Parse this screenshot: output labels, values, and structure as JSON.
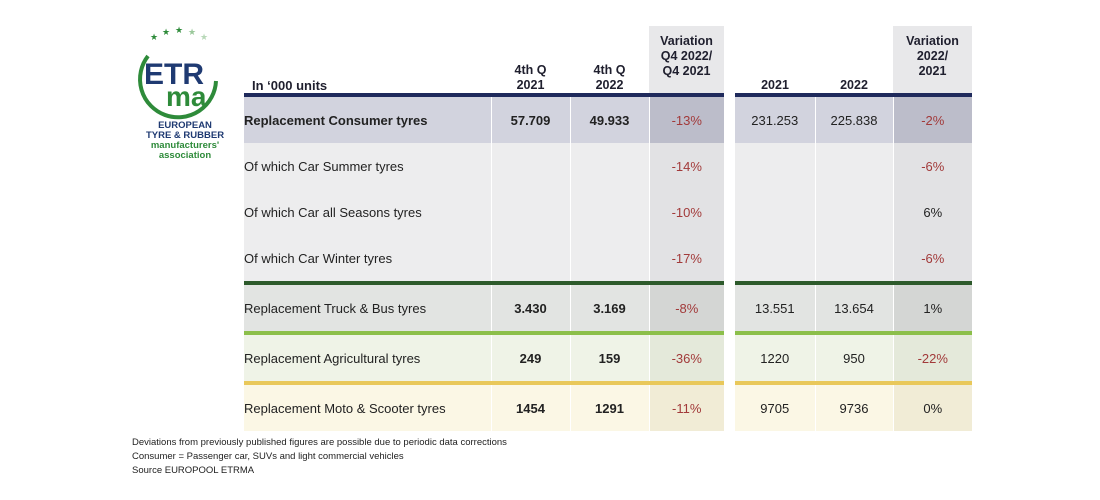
{
  "logo": {
    "acronym_top": "ETR",
    "acronym_bottom": "ma",
    "line1": "EUROPEAN",
    "line2": "TYRE & RUBBER",
    "line3": "manufacturers'",
    "line4": "association"
  },
  "table": {
    "headers": {
      "unit": "In ‘000 units",
      "q4_2021_l1": "4th Q",
      "q4_2021_l2": "2021",
      "q4_2022_l1": "4th Q",
      "q4_2022_l2": "2022",
      "var_q_l1": "Variation",
      "var_q_l2": "Q4 2022/",
      "var_q_l3": "Q4 2021",
      "y2021": "2021",
      "y2022": "2022",
      "var_y_l1": "Variation",
      "var_y_l2": "2022/",
      "var_y_l3": "2021"
    },
    "rows": [
      {
        "label": "Replacement Consumer tyres",
        "q21": "57.709",
        "q22": "49.933",
        "varq": "-13%",
        "y21": "231.253",
        "y22": "225.838",
        "vary": "-2%"
      },
      {
        "label": "Of which Car Summer tyres",
        "q21": "",
        "q22": "",
        "varq": "-14%",
        "y21": "",
        "y22": "",
        "vary": "-6%"
      },
      {
        "label": "Of which Car all Seasons tyres",
        "q21": "",
        "q22": "",
        "varq": "-10%",
        "y21": "",
        "y22": "",
        "vary": "6%"
      },
      {
        "label": "Of which Car Winter tyres",
        "q21": "",
        "q22": "",
        "varq": "-17%",
        "y21": "",
        "y22": "",
        "vary": "-6%"
      },
      {
        "label": "Replacement Truck & Bus tyres",
        "q21": "3.430",
        "q22": "3.169",
        "varq": "-8%",
        "y21": "13.551",
        "y22": "13.654",
        "vary": "1%"
      },
      {
        "label": "Replacement Agricultural tyres",
        "q21": "249",
        "q22": "159",
        "varq": "-36%",
        "y21": "1220",
        "y22": "950",
        "vary": "-22%"
      },
      {
        "label": "Replacement Moto & Scooter tyres",
        "q21": "1454",
        "q22": "1291",
        "varq": "-11%",
        "y21": "9705",
        "y22": "9736",
        "vary": "0%"
      }
    ]
  },
  "footnotes": [
    "Deviations from previously published figures are possible due to periodic data corrections",
    "Consumer = Passenger car, SUVs and light commercial vehicles",
    "Source EUROPOOL ETRMA"
  ]
}
